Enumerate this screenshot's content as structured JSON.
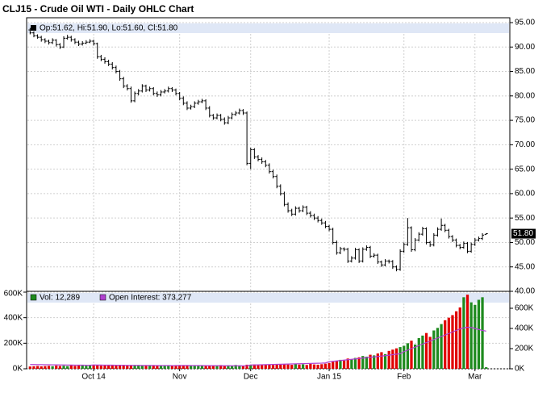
{
  "chart_data": [
    {
      "type": "ohlc",
      "title": "CLJ15 - Crude Oil WTI - Daily OHLC Chart",
      "ohlc_label": "Op:51.62, Hi:51.90, Lo:51.60, Cl:51.80",
      "last_price_label": "51.80",
      "color": "#000000",
      "categories": [
        null,
        null,
        null,
        null,
        null,
        null,
        null,
        null,
        null,
        null,
        null,
        null,
        null,
        null,
        null,
        null,
        null,
        "Oct 14",
        null,
        null,
        null,
        null,
        null,
        null,
        null,
        null,
        null,
        null,
        null,
        null,
        null,
        null,
        null,
        null,
        null,
        null,
        null,
        null,
        null,
        null,
        "Nov",
        null,
        null,
        null,
        null,
        null,
        null,
        null,
        null,
        null,
        null,
        null,
        null,
        null,
        null,
        null,
        null,
        null,
        null,
        "Dec",
        null,
        null,
        null,
        null,
        null,
        null,
        null,
        null,
        null,
        null,
        null,
        null,
        null,
        null,
        null,
        null,
        null,
        null,
        null,
        null,
        "Jan 15",
        null,
        null,
        null,
        null,
        null,
        null,
        null,
        null,
        null,
        null,
        null,
        null,
        null,
        null,
        null,
        null,
        null,
        null,
        null,
        "Feb",
        null,
        null,
        null,
        null,
        null,
        null,
        null,
        null,
        null,
        null,
        null,
        null,
        null,
        null,
        null,
        null,
        null,
        null,
        "Mar",
        null,
        null,
        null
      ],
      "values": [
        [
          93.5,
          93.9,
          92.6,
          92.9
        ],
        [
          92.9,
          93.2,
          92.0,
          92.3
        ],
        [
          92.3,
          92.6,
          91.7,
          92.0
        ],
        [
          92.0,
          92.3,
          91.1,
          91.5
        ],
        [
          91.5,
          91.8,
          90.8,
          91.2
        ],
        [
          91.2,
          91.5,
          90.5,
          90.9
        ],
        [
          90.9,
          91.8,
          90.6,
          91.4
        ],
        [
          91.4,
          91.6,
          90.1,
          90.5
        ],
        [
          90.5,
          90.8,
          89.6,
          90.0
        ],
        [
          90.0,
          92.2,
          89.8,
          91.8
        ],
        [
          91.8,
          92.5,
          91.5,
          92.0
        ],
        [
          92.0,
          92.3,
          91.1,
          91.5
        ],
        [
          91.5,
          91.8,
          90.6,
          91.0
        ],
        [
          91.0,
          91.3,
          90.2,
          90.6
        ],
        [
          90.6,
          91.2,
          90.3,
          90.8
        ],
        [
          90.8,
          91.4,
          90.6,
          91.0
        ],
        [
          91.0,
          91.6,
          90.8,
          91.2
        ],
        [
          91.2,
          91.5,
          90.3,
          90.7
        ],
        [
          90.7,
          90.9,
          87.6,
          88.0
        ],
        [
          88.0,
          88.4,
          87.1,
          87.5
        ],
        [
          87.5,
          87.9,
          86.6,
          87.0
        ],
        [
          87.0,
          87.4,
          86.1,
          86.5
        ],
        [
          86.5,
          86.9,
          85.4,
          85.8
        ],
        [
          85.8,
          86.2,
          84.6,
          85.0
        ],
        [
          85.0,
          85.3,
          83.1,
          83.5
        ],
        [
          83.5,
          83.9,
          81.6,
          82.0
        ],
        [
          82.0,
          82.4,
          81.1,
          81.5
        ],
        [
          81.5,
          81.9,
          78.6,
          79.0
        ],
        [
          79.0,
          80.9,
          78.7,
          80.5
        ],
        [
          80.5,
          81.4,
          80.1,
          81.0
        ],
        [
          81.0,
          82.4,
          80.7,
          82.0
        ],
        [
          82.0,
          82.3,
          80.8,
          81.2
        ],
        [
          81.2,
          81.9,
          80.9,
          81.5
        ],
        [
          81.5,
          81.8,
          80.1,
          80.5
        ],
        [
          80.5,
          80.9,
          79.8,
          80.2
        ],
        [
          80.2,
          81.2,
          79.9,
          80.8
        ],
        [
          80.8,
          81.4,
          80.5,
          81.0
        ],
        [
          81.0,
          81.9,
          80.7,
          81.5
        ],
        [
          81.5,
          81.8,
          80.8,
          81.2
        ],
        [
          81.2,
          81.5,
          80.1,
          80.5
        ],
        [
          80.5,
          80.8,
          79.1,
          79.5
        ],
        [
          79.5,
          79.9,
          78.1,
          78.5
        ],
        [
          78.5,
          78.9,
          77.1,
          77.5
        ],
        [
          77.5,
          78.2,
          77.2,
          77.8
        ],
        [
          77.8,
          78.9,
          77.5,
          78.5
        ],
        [
          78.5,
          79.2,
          78.2,
          78.8
        ],
        [
          78.8,
          79.4,
          78.5,
          79.0
        ],
        [
          79.0,
          79.3,
          77.1,
          77.5
        ],
        [
          77.5,
          77.9,
          75.6,
          76.0
        ],
        [
          76.0,
          76.3,
          75.1,
          75.5
        ],
        [
          75.5,
          76.4,
          75.2,
          76.0
        ],
        [
          76.0,
          76.3,
          74.8,
          75.2
        ],
        [
          75.2,
          75.6,
          74.1,
          74.5
        ],
        [
          74.5,
          75.9,
          74.2,
          75.5
        ],
        [
          75.5,
          76.6,
          75.2,
          76.2
        ],
        [
          76.2,
          76.9,
          75.9,
          76.5
        ],
        [
          76.5,
          77.4,
          76.2,
          77.0
        ],
        [
          77.0,
          77.3,
          76.1,
          76.5
        ],
        [
          76.5,
          76.8,
          65.8,
          66.2
        ],
        [
          66.2,
          69.4,
          65.0,
          69.0
        ],
        [
          69.0,
          69.3,
          67.1,
          67.5
        ],
        [
          67.5,
          67.9,
          66.6,
          67.0
        ],
        [
          67.0,
          67.4,
          66.1,
          66.5
        ],
        [
          66.5,
          66.9,
          65.4,
          65.8
        ],
        [
          65.8,
          66.2,
          64.1,
          64.5
        ],
        [
          64.5,
          64.9,
          63.1,
          63.5
        ],
        [
          63.5,
          63.9,
          61.1,
          61.5
        ],
        [
          61.5,
          61.9,
          59.6,
          60.0
        ],
        [
          60.0,
          60.4,
          57.4,
          57.8
        ],
        [
          57.8,
          58.2,
          56.1,
          56.5
        ],
        [
          56.5,
          56.9,
          55.4,
          55.8
        ],
        [
          55.8,
          57.4,
          55.5,
          57.0
        ],
        [
          57.0,
          57.3,
          56.1,
          56.5
        ],
        [
          56.5,
          57.6,
          56.2,
          57.2
        ],
        [
          57.2,
          57.5,
          55.6,
          56.0
        ],
        [
          56.0,
          56.4,
          55.1,
          55.5
        ],
        [
          55.5,
          55.9,
          54.6,
          55.0
        ],
        [
          55.0,
          55.4,
          54.1,
          54.5
        ],
        [
          54.5,
          54.9,
          53.6,
          54.0
        ],
        [
          54.0,
          54.4,
          52.9,
          53.3
        ],
        [
          53.3,
          53.6,
          52.3,
          52.7
        ],
        [
          52.7,
          53.0,
          49.6,
          50.0
        ],
        [
          50.0,
          50.4,
          47.5,
          47.9
        ],
        [
          47.9,
          49.1,
          47.6,
          48.7
        ],
        [
          48.7,
          49.0,
          48.2,
          48.6
        ],
        [
          48.6,
          48.9,
          45.8,
          46.2
        ],
        [
          46.2,
          47.2,
          45.9,
          46.8
        ],
        [
          46.8,
          48.9,
          46.5,
          48.5
        ],
        [
          48.5,
          48.8,
          45.8,
          46.2
        ],
        [
          46.2,
          49.0,
          45.9,
          48.6
        ],
        [
          48.6,
          49.4,
          48.3,
          49.0
        ],
        [
          49.0,
          49.3,
          46.8,
          47.2
        ],
        [
          47.2,
          47.8,
          46.9,
          47.4
        ],
        [
          47.4,
          47.7,
          45.6,
          46.0
        ],
        [
          46.0,
          46.3,
          45.0,
          45.4
        ],
        [
          45.4,
          46.6,
          45.1,
          46.2
        ],
        [
          46.2,
          46.5,
          45.7,
          46.1
        ],
        [
          46.1,
          46.4,
          44.6,
          45.0
        ],
        [
          45.0,
          45.3,
          44.1,
          44.5
        ],
        [
          44.5,
          48.6,
          44.2,
          48.2
        ],
        [
          48.2,
          50.0,
          47.9,
          49.6
        ],
        [
          49.6,
          55.0,
          49.3,
          53.0
        ],
        [
          53.0,
          53.3,
          48.1,
          48.5
        ],
        [
          48.5,
          50.9,
          48.2,
          50.5
        ],
        [
          50.5,
          52.1,
          50.2,
          51.7
        ],
        [
          51.7,
          53.2,
          51.4,
          52.8
        ],
        [
          52.8,
          53.1,
          49.6,
          50.0
        ],
        [
          50.0,
          50.3,
          49.1,
          49.5
        ],
        [
          49.5,
          51.9,
          49.2,
          51.5
        ],
        [
          51.5,
          53.1,
          51.2,
          52.7
        ],
        [
          52.7,
          54.9,
          52.4,
          53.5
        ],
        [
          53.5,
          53.8,
          52.1,
          52.5
        ],
        [
          52.5,
          52.8,
          50.8,
          51.2
        ],
        [
          51.2,
          51.5,
          50.1,
          50.5
        ],
        [
          50.5,
          50.8,
          49.0,
          49.4
        ],
        [
          49.4,
          49.7,
          48.6,
          49.0
        ],
        [
          49.0,
          50.2,
          48.7,
          49.8
        ],
        [
          49.8,
          50.1,
          47.8,
          48.2
        ],
        [
          48.2,
          50.0,
          47.9,
          49.6
        ],
        [
          49.6,
          50.9,
          49.3,
          50.5
        ],
        [
          50.5,
          51.2,
          50.2,
          50.8
        ],
        [
          50.8,
          51.9,
          50.5,
          51.5
        ],
        [
          51.62,
          51.9,
          51.6,
          51.8
        ]
      ],
      "ylim": [
        40,
        95
      ],
      "yticks": [
        {
          "value": 40,
          "label": "40.00"
        },
        {
          "value": 45,
          "label": "45.00"
        },
        {
          "value": 50,
          "label": "50.00"
        },
        {
          "value": 55,
          "label": "55.00"
        },
        {
          "value": 60,
          "label": "60.00"
        },
        {
          "value": 65,
          "label": "65.00"
        },
        {
          "value": 70,
          "label": "70.00"
        },
        {
          "value": 75,
          "label": "75.00"
        },
        {
          "value": 80,
          "label": "80.00"
        },
        {
          "value": 85,
          "label": "85.00"
        },
        {
          "value": 90,
          "label": "90.00"
        },
        {
          "value": 95,
          "label": "95.00"
        }
      ],
      "grid": true
    },
    {
      "type": "bar",
      "series": [
        {
          "name": "Vol: 12,289",
          "up_color": "#1e8a1e",
          "down_color": "#e00000",
          "values": [
            18000,
            20000,
            22000,
            19000,
            21000,
            23000,
            20000,
            25000,
            22000,
            24000,
            21000,
            26000,
            23000,
            25000,
            27000,
            24000,
            30000,
            28000,
            26000,
            24000,
            27000,
            25000,
            29000,
            26000,
            28000,
            30000,
            27000,
            25000,
            29000,
            26000,
            24000,
            27000,
            25000,
            28000,
            23000,
            26000,
            24000,
            27000,
            25000,
            29000,
            26000,
            24000,
            28000,
            25000,
            27000,
            23000,
            26000,
            28000,
            25000,
            27000,
            24000,
            29000,
            26000,
            28000,
            25000,
            30000,
            27000,
            24000,
            32000,
            30000,
            34000,
            28000,
            31000,
            29000,
            33000,
            30000,
            35000,
            32000,
            36000,
            34000,
            31000,
            37000,
            33000,
            35000,
            30000,
            38000,
            34000,
            32000,
            36000,
            40000,
            45000,
            55000,
            60000,
            70000,
            65000,
            80000,
            75000,
            85000,
            90000,
            100000,
            95000,
            110000,
            105000,
            120000,
            130000,
            115000,
            140000,
            150000,
            160000,
            170000,
            180000,
            200000,
            220000,
            190000,
            240000,
            260000,
            280000,
            250000,
            300000,
            320000,
            350000,
            380000,
            400000,
            420000,
            450000,
            480000,
            560000,
            580000,
            520000,
            500000,
            540000,
            560000,
            12289
          ]
        },
        {
          "name": "Open Interest: 373,277",
          "color": "#b040d0",
          "axis": "y2",
          "values": [
            42000,
            42000,
            41000,
            41000,
            40000,
            40000,
            39000,
            39000,
            38000,
            38000,
            37000,
            37000,
            36000,
            36000,
            36000,
            35000,
            35000,
            38000,
            37000,
            37000,
            36000,
            36000,
            36000,
            35000,
            35000,
            35000,
            34000,
            34000,
            34000,
            34000,
            33000,
            33000,
            33000,
            33000,
            32000,
            32000,
            32000,
            32000,
            31000,
            31000,
            33000,
            33000,
            33000,
            32000,
            32000,
            32000,
            32000,
            31000,
            31000,
            31000,
            31000,
            30000,
            30000,
            30000,
            30000,
            29000,
            29000,
            29000,
            30000,
            38000,
            38000,
            39000,
            40000,
            41000,
            42000,
            43000,
            44000,
            45000,
            46000,
            47000,
            48000,
            49000,
            50000,
            51000,
            52000,
            53000,
            54000,
            55000,
            56000,
            58000,
            70000,
            74000,
            78000,
            82000,
            86000,
            90000,
            94000,
            98000,
            102000,
            106000,
            110000,
            114000,
            118000,
            122000,
            126000,
            130000,
            135000,
            140000,
            145000,
            150000,
            170000,
            185000,
            200000,
            215000,
            230000,
            245000,
            260000,
            275000,
            290000,
            305000,
            320000,
            335000,
            350000,
            365000,
            380000,
            395000,
            405000,
            412000,
            410000,
            400000,
            390000,
            380000,
            373277
          ]
        }
      ],
      "ylim": [
        0,
        600000
      ],
      "yticks": [
        {
          "value": 0,
          "label": "0K"
        },
        {
          "value": 200000,
          "label": "200K"
        },
        {
          "value": 400000,
          "label": "400K"
        },
        {
          "value": 600000,
          "label": "600K"
        }
      ],
      "y2lim": [
        0,
        600000
      ],
      "y2ticks": [
        {
          "value": 0,
          "label": "0K"
        },
        {
          "value": 200000,
          "label": "200K"
        },
        {
          "value": 400000,
          "label": "400K"
        },
        {
          "value": 600000,
          "label": "600K"
        }
      ],
      "grid": true
    }
  ]
}
